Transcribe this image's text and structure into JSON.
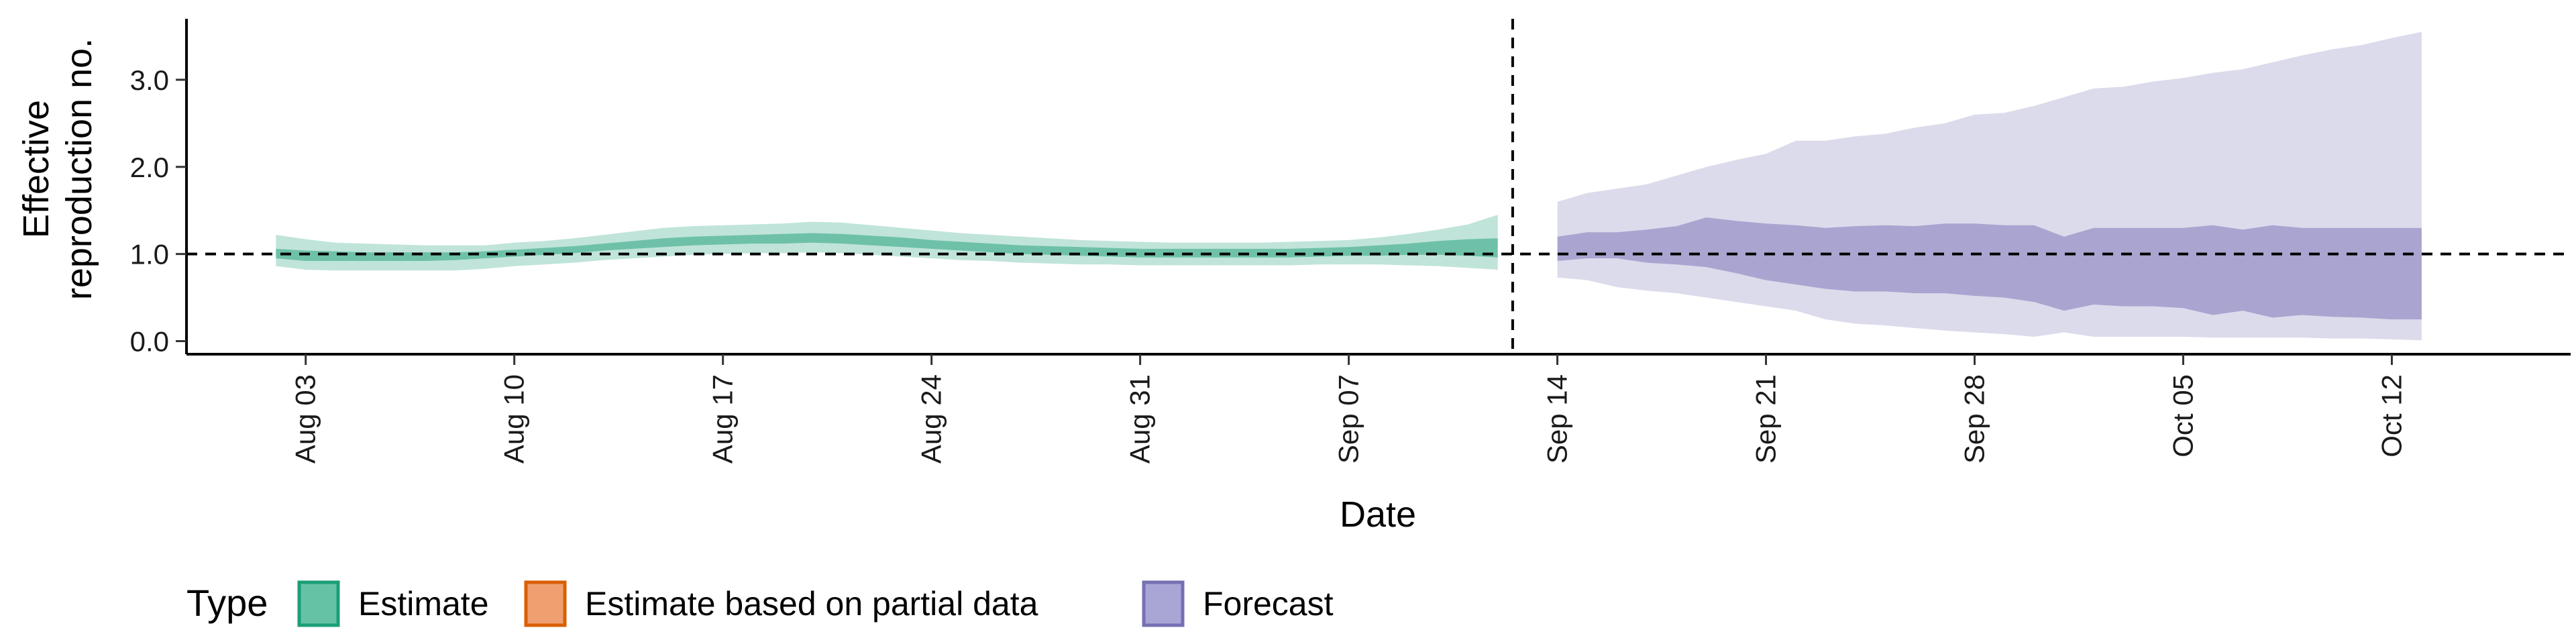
{
  "chart_data": {
    "type": "area",
    "xlabel": "Date",
    "ylabel": [
      "Effective",
      "reproduction no."
    ],
    "x_range": [
      "2021-07-30",
      "2021-10-18"
    ],
    "ylim": [
      -0.15,
      3.7
    ],
    "y_ticks": [
      0.0,
      1.0,
      2.0,
      3.0
    ],
    "y_tick_labels": [
      "0.0",
      "1.0",
      "2.0",
      "3.0"
    ],
    "x_ticks": [
      "2021-08-03",
      "2021-08-10",
      "2021-08-17",
      "2021-08-24",
      "2021-08-31",
      "2021-09-07",
      "2021-09-14",
      "2021-09-21",
      "2021-09-28",
      "2021-10-05",
      "2021-10-12"
    ],
    "x_tick_labels": [
      "Aug 03",
      "Aug 10",
      "Aug 17",
      "Aug 24",
      "Aug 31",
      "Sep 07",
      "Sep 14",
      "Sep 21",
      "Sep 28",
      "Oct 05",
      "Oct 12"
    ],
    "reference_line_y": 1.0,
    "forecast_start_date": "2021-09-13",
    "grid": false,
    "legend_placement": "bottom-left",
    "legend": {
      "title": "Type",
      "entries": [
        {
          "label": "Estimate",
          "fill": "#66c2a5",
          "border": "#1b9e77"
        },
        {
          "label": "Estimate based on partial data",
          "fill": "#f0a070",
          "border": "#d95f02"
        },
        {
          "label": "Forecast",
          "fill": "#a9a6d6",
          "border": "#7570b3"
        }
      ]
    },
    "series": [
      {
        "name": "Estimate",
        "color": "#1b9e77",
        "x": [
          "2021-08-02",
          "2021-08-03",
          "2021-08-04",
          "2021-08-05",
          "2021-08-06",
          "2021-08-07",
          "2021-08-08",
          "2021-08-09",
          "2021-08-10",
          "2021-08-11",
          "2021-08-12",
          "2021-08-13",
          "2021-08-14",
          "2021-08-15",
          "2021-08-16",
          "2021-08-17",
          "2021-08-18",
          "2021-08-19",
          "2021-08-20",
          "2021-08-21",
          "2021-08-22",
          "2021-08-23",
          "2021-08-24",
          "2021-08-25",
          "2021-08-26",
          "2021-08-27",
          "2021-08-28",
          "2021-08-29",
          "2021-08-30",
          "2021-08-31",
          "2021-09-01",
          "2021-09-02",
          "2021-09-03",
          "2021-09-04",
          "2021-09-05",
          "2021-09-06",
          "2021-09-07",
          "2021-09-08",
          "2021-09-09",
          "2021-09-10",
          "2021-09-11",
          "2021-09-12"
        ],
        "upper_90": [
          1.22,
          1.17,
          1.13,
          1.12,
          1.11,
          1.1,
          1.1,
          1.1,
          1.13,
          1.15,
          1.18,
          1.22,
          1.26,
          1.3,
          1.32,
          1.33,
          1.34,
          1.35,
          1.37,
          1.36,
          1.33,
          1.3,
          1.27,
          1.24,
          1.22,
          1.2,
          1.18,
          1.16,
          1.15,
          1.14,
          1.13,
          1.13,
          1.13,
          1.13,
          1.14,
          1.15,
          1.16,
          1.19,
          1.23,
          1.28,
          1.34,
          1.45
        ],
        "upper_50": [
          1.06,
          1.04,
          1.03,
          1.02,
          1.02,
          1.02,
          1.02,
          1.03,
          1.05,
          1.07,
          1.09,
          1.12,
          1.15,
          1.18,
          1.2,
          1.21,
          1.22,
          1.23,
          1.24,
          1.23,
          1.21,
          1.19,
          1.16,
          1.14,
          1.12,
          1.1,
          1.09,
          1.08,
          1.07,
          1.06,
          1.06,
          1.06,
          1.06,
          1.06,
          1.06,
          1.07,
          1.08,
          1.1,
          1.12,
          1.15,
          1.17,
          1.18
        ],
        "lower_50": [
          0.95,
          0.92,
          0.92,
          0.92,
          0.92,
          0.92,
          0.93,
          0.95,
          0.97,
          0.99,
          1.01,
          1.04,
          1.06,
          1.08,
          1.1,
          1.11,
          1.12,
          1.12,
          1.13,
          1.12,
          1.1,
          1.08,
          1.06,
          1.04,
          1.02,
          1.0,
          0.99,
          0.98,
          0.97,
          0.96,
          0.96,
          0.96,
          0.96,
          0.96,
          0.96,
          0.97,
          0.98,
          0.98,
          0.99,
          0.99,
          0.98,
          0.96
        ],
        "lower_90": [
          0.86,
          0.82,
          0.81,
          0.81,
          0.81,
          0.81,
          0.81,
          0.83,
          0.86,
          0.88,
          0.9,
          0.93,
          0.95,
          0.97,
          0.99,
          1.0,
          1.01,
          1.01,
          1.02,
          1.01,
          0.99,
          0.97,
          0.95,
          0.93,
          0.92,
          0.9,
          0.89,
          0.88,
          0.88,
          0.87,
          0.87,
          0.87,
          0.87,
          0.87,
          0.87,
          0.88,
          0.88,
          0.88,
          0.87,
          0.86,
          0.84,
          0.82
        ]
      },
      {
        "name": "Forecast",
        "color": "#7570b3",
        "x": [
          "2021-09-14",
          "2021-09-15",
          "2021-09-16",
          "2021-09-17",
          "2021-09-18",
          "2021-09-19",
          "2021-09-20",
          "2021-09-21",
          "2021-09-22",
          "2021-09-23",
          "2021-09-24",
          "2021-09-25",
          "2021-09-26",
          "2021-09-27",
          "2021-09-28",
          "2021-09-29",
          "2021-09-30",
          "2021-10-01",
          "2021-10-02",
          "2021-10-03",
          "2021-10-04",
          "2021-10-05",
          "2021-10-06",
          "2021-10-07",
          "2021-10-08",
          "2021-10-09",
          "2021-10-10",
          "2021-10-11",
          "2021-10-12",
          "2021-10-13"
        ],
        "upper_90": [
          1.6,
          1.7,
          1.75,
          1.8,
          1.9,
          2.0,
          2.08,
          2.15,
          2.3,
          2.3,
          2.35,
          2.38,
          2.45,
          2.5,
          2.6,
          2.62,
          2.7,
          2.8,
          2.9,
          2.92,
          2.98,
          3.02,
          3.08,
          3.12,
          3.2,
          3.28,
          3.35,
          3.4,
          3.48,
          3.55
        ],
        "upper_50": [
          1.2,
          1.25,
          1.25,
          1.28,
          1.32,
          1.42,
          1.38,
          1.35,
          1.33,
          1.3,
          1.32,
          1.33,
          1.32,
          1.35,
          1.35,
          1.33,
          1.33,
          1.2,
          1.3,
          1.3,
          1.3,
          1.3,
          1.33,
          1.28,
          1.33,
          1.3,
          1.3,
          1.3,
          1.3,
          1.3
        ],
        "lower_50": [
          0.92,
          0.95,
          0.95,
          0.9,
          0.88,
          0.85,
          0.78,
          0.7,
          0.65,
          0.6,
          0.57,
          0.57,
          0.55,
          0.55,
          0.52,
          0.5,
          0.45,
          0.35,
          0.42,
          0.4,
          0.4,
          0.38,
          0.3,
          0.35,
          0.27,
          0.3,
          0.28,
          0.27,
          0.25,
          0.25
        ],
        "lower_90": [
          0.73,
          0.7,
          0.62,
          0.58,
          0.55,
          0.5,
          0.45,
          0.4,
          0.35,
          0.25,
          0.2,
          0.18,
          0.15,
          0.12,
          0.1,
          0.08,
          0.05,
          0.1,
          0.05,
          0.05,
          0.05,
          0.05,
          0.04,
          0.04,
          0.04,
          0.04,
          0.03,
          0.03,
          0.02,
          0.01
        ]
      }
    ]
  }
}
